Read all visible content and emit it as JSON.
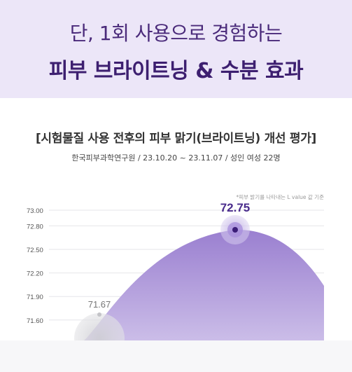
{
  "headline": {
    "line1": "단, 1회 사용으로 경험하는",
    "line2": "피부 브라이트닝 & 수분 효과"
  },
  "colors": {
    "banner_bg": "#ece6f8",
    "accent": "#7a5cc0",
    "accent_dark": "#4a2c8c"
  },
  "chart_data": {
    "type": "area",
    "title": "[시험물질 사용 전후의 피부 맑기(브라이트닝) 개선 평가]",
    "subtitle": "한국피부과학연구원 / 23.10.20 ~ 23.11.07 / 성인 여성 22명",
    "note": "*피부 밝기를 나타내는 L value 값 기준",
    "ylim": [
      71.5,
      73.0
    ],
    "y_ticks": [
      "73.00",
      "72.80",
      "72.50",
      "72.20",
      "71.90",
      "71.60"
    ],
    "y_tick_values": [
      73.0,
      72.8,
      72.5,
      72.2,
      71.9,
      71.6
    ],
    "grid": true,
    "points": [
      {
        "label": "71.67",
        "value": 71.67
      },
      {
        "label": "72.75",
        "value": 72.75
      }
    ]
  }
}
